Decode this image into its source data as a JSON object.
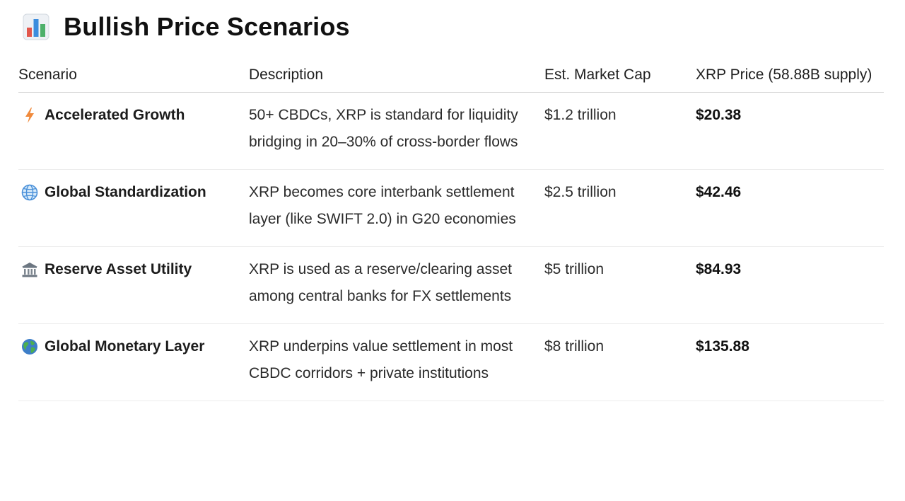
{
  "heading": {
    "icon": "bar-chart-icon",
    "title": "Bullish Price Scenarios"
  },
  "table": {
    "headers": [
      "Scenario",
      "Description",
      "Est. Market Cap",
      "XRP Price (58.88B supply)"
    ],
    "rows": [
      {
        "icon": "lightning-icon",
        "scenario": "Accelerated Growth",
        "description": "50+ CBDCs, XRP is standard for liquidity bridging in 20–30% of cross-border flows",
        "market_cap": "$1.2 trillion",
        "price": "$20.38"
      },
      {
        "icon": "globe-meridians-icon",
        "scenario": "Global Standardization",
        "description": "XRP becomes core interbank settlement layer (like SWIFT 2.0) in G20 economies",
        "market_cap": "$2.5 trillion",
        "price": "$42.46"
      },
      {
        "icon": "bank-icon",
        "scenario": "Reserve Asset Utility",
        "description": "XRP is used as a reserve/clearing asset among central banks for FX settlements",
        "market_cap": "$5 trillion",
        "price": "$84.93"
      },
      {
        "icon": "globe-earth-icon",
        "scenario": "Global Monetary Layer",
        "description": "XRP underpins value settlement in most CBDC corridors + private institutions",
        "market_cap": "$8 trillion",
        "price": "$135.88"
      }
    ]
  },
  "colors": {
    "lightning": "#f08a3c",
    "globe_meridians": "#4a90d9",
    "bank": "#6b7580",
    "earth_ocean": "#3d7ec8",
    "earth_land": "#4caf50"
  }
}
